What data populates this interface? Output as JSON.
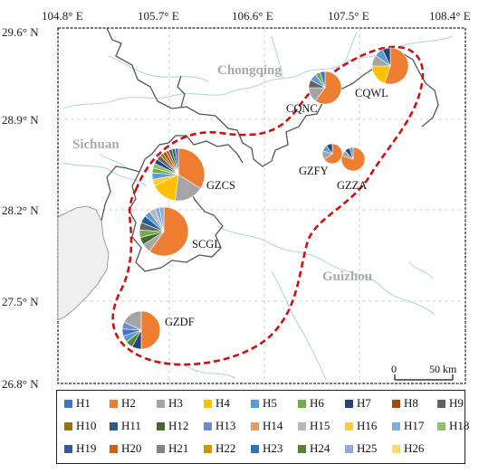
{
  "map": {
    "lon_labels": [
      "104.8° E",
      "105.7° E",
      "106.6° E",
      "107.5° E",
      "108.4° E"
    ],
    "lat_labels": [
      "29.6° N",
      "28.9° N",
      "28.2° N",
      "27.5° N",
      "26.8° N"
    ],
    "regions": [
      {
        "name": "Chongqing"
      },
      {
        "name": "Sichuan"
      },
      {
        "name": "Guizhou"
      }
    ],
    "scale_bar": {
      "start_label": "0",
      "end_label": "50 km"
    },
    "sites": [
      {
        "name": "CQWL"
      },
      {
        "name": "CQNC"
      },
      {
        "name": "GZFY"
      },
      {
        "name": "GZZA"
      },
      {
        "name": "GZCS"
      },
      {
        "name": "SCGL"
      },
      {
        "name": "GZDF"
      }
    ]
  },
  "legend": {
    "items": [
      {
        "label": "H1",
        "color": "#4472c4"
      },
      {
        "label": "H2",
        "color": "#ed7d31"
      },
      {
        "label": "H3",
        "color": "#a5a5a5"
      },
      {
        "label": "H4",
        "color": "#ffc000"
      },
      {
        "label": "H5",
        "color": "#5b9bd5"
      },
      {
        "label": "H6",
        "color": "#70ad47"
      },
      {
        "label": "H7",
        "color": "#264478"
      },
      {
        "label": "H8",
        "color": "#9e480e"
      },
      {
        "label": "H9",
        "color": "#636363"
      },
      {
        "label": "H10",
        "color": "#997300"
      },
      {
        "label": "H11",
        "color": "#255e91"
      },
      {
        "label": "H12",
        "color": "#43682b"
      },
      {
        "label": "H13",
        "color": "#698ed0"
      },
      {
        "label": "H14",
        "color": "#f1975a"
      },
      {
        "label": "H15",
        "color": "#b7b7b7"
      },
      {
        "label": "H16",
        "color": "#ffcd33"
      },
      {
        "label": "H17",
        "color": "#7cafdd"
      },
      {
        "label": "H18",
        "color": "#8cc168"
      },
      {
        "label": "H19",
        "color": "#335aa1"
      },
      {
        "label": "H20",
        "color": "#d26012"
      },
      {
        "label": "H21",
        "color": "#848484"
      },
      {
        "label": "H22",
        "color": "#cc9a00"
      },
      {
        "label": "H23",
        "color": "#2e75b6"
      },
      {
        "label": "H24",
        "color": "#548235"
      },
      {
        "label": "H25",
        "color": "#8faadc"
      },
      {
        "label": "H26",
        "color": "#ffd966"
      }
    ]
  },
  "pies": {
    "CQWL": [
      {
        "h": "H2",
        "v": 55
      },
      {
        "h": "H4",
        "v": 20
      },
      {
        "h": "H3",
        "v": 10
      },
      {
        "h": "H5",
        "v": 8
      },
      {
        "h": "H7",
        "v": 7
      }
    ],
    "CQNC": [
      {
        "h": "H2",
        "v": 60
      },
      {
        "h": "H3",
        "v": 15
      },
      {
        "h": "H9",
        "v": 8
      },
      {
        "h": "H5",
        "v": 7
      },
      {
        "h": "H6",
        "v": 5
      },
      {
        "h": "H1",
        "v": 5
      }
    ],
    "GZFY": [
      {
        "h": "H2",
        "v": 65
      },
      {
        "h": "H3",
        "v": 15
      },
      {
        "h": "H5",
        "v": 10
      },
      {
        "h": "H7",
        "v": 10
      }
    ],
    "GZZA": [
      {
        "h": "H2",
        "v": 80
      },
      {
        "h": "H3",
        "v": 8
      },
      {
        "h": "H7",
        "v": 7
      },
      {
        "h": "H5",
        "v": 5
      }
    ],
    "GZCS": [
      {
        "h": "H2",
        "v": 34
      },
      {
        "h": "H3",
        "v": 18
      },
      {
        "h": "H4",
        "v": 16
      },
      {
        "h": "H16",
        "v": 4
      },
      {
        "h": "H5",
        "v": 4
      },
      {
        "h": "H6",
        "v": 3
      },
      {
        "h": "H18",
        "v": 3
      },
      {
        "h": "H7",
        "v": 3
      },
      {
        "h": "H9",
        "v": 3
      },
      {
        "h": "H10",
        "v": 2
      },
      {
        "h": "H8",
        "v": 2
      },
      {
        "h": "H20",
        "v": 2
      },
      {
        "h": "H11",
        "v": 2
      },
      {
        "h": "H12",
        "v": 2
      },
      {
        "h": "H1",
        "v": 2
      }
    ],
    "SCGL": [
      {
        "h": "H2",
        "v": 60
      },
      {
        "h": "H3",
        "v": 6
      },
      {
        "h": "H12",
        "v": 5
      },
      {
        "h": "H6",
        "v": 5
      },
      {
        "h": "H9",
        "v": 5
      },
      {
        "h": "H11",
        "v": 5
      },
      {
        "h": "H5",
        "v": 4
      },
      {
        "h": "H15",
        "v": 4
      },
      {
        "h": "H17",
        "v": 3
      },
      {
        "h": "H25",
        "v": 3
      }
    ],
    "GZDF": [
      {
        "h": "H2",
        "v": 50
      },
      {
        "h": "H7",
        "v": 8
      },
      {
        "h": "H24",
        "v": 6
      },
      {
        "h": "H5",
        "v": 6
      },
      {
        "h": "H1",
        "v": 6
      },
      {
        "h": "H13",
        "v": 6
      },
      {
        "h": "H3",
        "v": 18
      }
    ]
  }
}
